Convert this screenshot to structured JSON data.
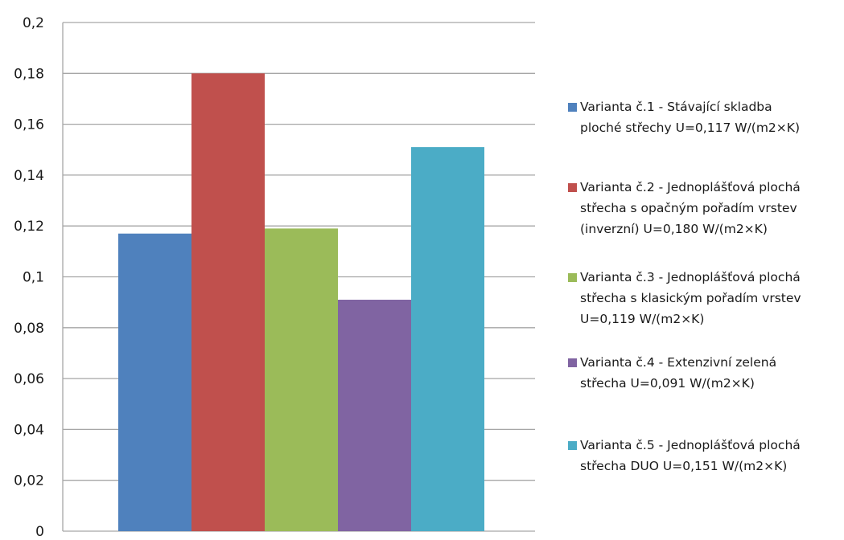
{
  "chart_data": {
    "type": "bar",
    "categories": [
      "Varianta č.1",
      "Varianta č.2",
      "Varianta č.3",
      "Varianta č.4",
      "Varianta č.5"
    ],
    "series": [
      {
        "name": "Varianta č.1 - Stávající skladba ploché střechy U=0,117 W/(m2×K)",
        "value": 0.117,
        "color": "#4f81bd"
      },
      {
        "name": "Varianta č.2 - Jednoplášťová plochá střecha s opačným pořadím vrstev (inverzní) U=0,180 W/(m2×K)",
        "value": 0.18,
        "color": "#c0504d"
      },
      {
        "name": "Varianta č.3 - Jednoplášťová plochá střecha s klasickým pořadím vrstev U=0,119 W/(m2×K)",
        "value": 0.119,
        "color": "#9bbb59"
      },
      {
        "name": "Varianta č.4 - Extenzivní zelená střecha U=0,091 W/(m2×K)",
        "value": 0.091,
        "color": "#8064a2"
      },
      {
        "name": "Varianta č.5 - Jednoplášťová plochá střecha DUO U=0,151 W/(m2×K)",
        "value": 0.151,
        "color": "#4bacc6"
      }
    ],
    "ylim": [
      0,
      0.2
    ],
    "yticks": [
      "0",
      "0,02",
      "0,04",
      "0,06",
      "0,08",
      "0,1",
      "0,12",
      "0,14",
      "0,16",
      "0,18",
      "0,2"
    ],
    "grid": true,
    "legend_position": "right",
    "title": "",
    "xlabel": "",
    "ylabel": ""
  },
  "legend": [
    {
      "lines": [
        "Varianta č.1 - Stávající skladba",
        "ploché střechy U=0,117 W/(m2×K)"
      ]
    },
    {
      "lines": [
        "Varianta č.2 - Jednoplášťová plochá",
        "střecha s opačným pořadím vrstev",
        "(inverzní) U=0,180 W/(m2×K)"
      ]
    },
    {
      "lines": [
        "Varianta č.3 - Jednoplášťová plochá",
        "střecha s klasickým pořadím vrstev",
        "U=0,119 W/(m2×K)"
      ]
    },
    {
      "lines": [
        "Varianta č.4 - Extenzivní zelená",
        "střecha U=0,091 W/(m2×K)"
      ]
    },
    {
      "lines": [
        "Varianta č.5 - Jednoplášťová plochá",
        "střecha DUO U=0,151 W/(m2×K)"
      ]
    }
  ]
}
